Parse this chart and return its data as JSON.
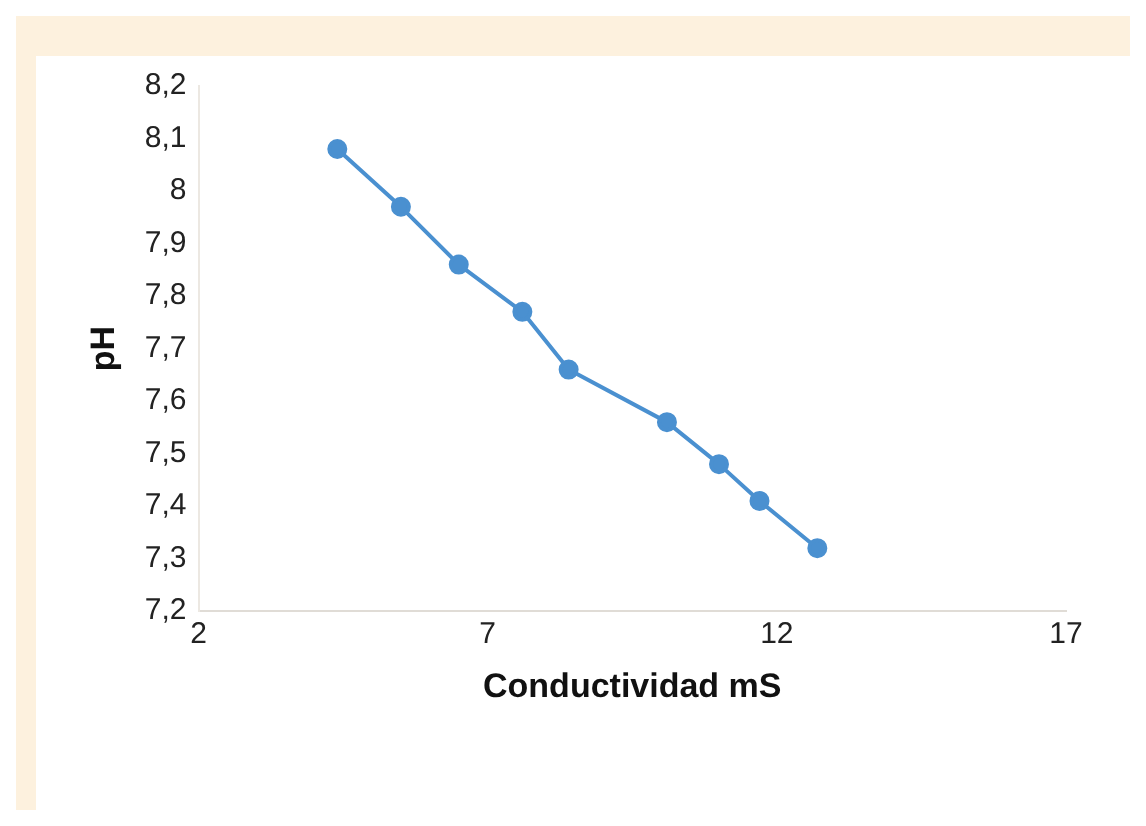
{
  "chart_data": {
    "type": "line",
    "xlabel": "Conductividad mS",
    "ylabel": "pH",
    "series": [
      {
        "color": "#4a90d0",
        "x": [
          4.4,
          5.5,
          6.5,
          7.6,
          8.4,
          10.1,
          11.0,
          11.7,
          12.7
        ],
        "values": [
          8.08,
          7.97,
          7.86,
          7.77,
          7.66,
          7.56,
          7.48,
          7.41,
          7.32
        ]
      }
    ],
    "xlim": [
      2,
      17
    ],
    "xticks": [
      2,
      7,
      12,
      17
    ],
    "ylim": [
      7.2,
      8.2
    ],
    "yticks": [
      {
        "value": 7.2,
        "label": "7,2"
      },
      {
        "value": 7.3,
        "label": "7,3"
      },
      {
        "value": 7.4,
        "label": "7,4"
      },
      {
        "value": 7.5,
        "label": "7,5"
      },
      {
        "value": 7.6,
        "label": "7,6"
      },
      {
        "value": 7.7,
        "label": "7,7"
      },
      {
        "value": 7.8,
        "label": "7,8"
      },
      {
        "value": 7.9,
        "label": "7,9"
      },
      {
        "value": 8,
        "label": "8"
      },
      {
        "value": 8.1,
        "label": "8,1"
      },
      {
        "value": 8.2,
        "label": "8,2"
      }
    ],
    "grid": false,
    "legend": false,
    "marker": "circle",
    "line_style": "solid"
  }
}
